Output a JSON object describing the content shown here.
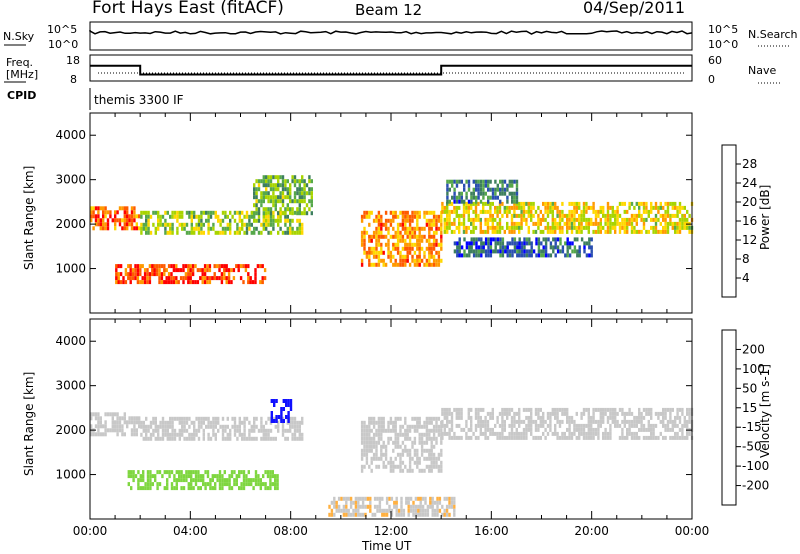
{
  "header": {
    "station": "Fort Hays East (fitACF)",
    "beam": "Beam 12",
    "date": "04/Sep/2011"
  },
  "status_panels": {
    "nsky_label": "N.Sky",
    "nsky_ticks": [
      "10^5",
      "10^0"
    ],
    "nsearch_label": "N.Search",
    "nsearch_ticks": [
      "10^5",
      "10^0"
    ],
    "freq_label_line1": "Freq.",
    "freq_label_line2": "[MHz]",
    "freq_ticks": [
      "18",
      "8"
    ],
    "nave_label": "Nave",
    "nave_ticks": [
      "60",
      "0"
    ],
    "cpid_label": "CPID",
    "cpid_value": "themis 3300 IF",
    "freq_steps_hours": [
      0,
      2,
      14,
      24
    ],
    "freq_values_mhz": [
      14.5,
      10.5,
      14.5
    ]
  },
  "colors": {
    "power_scale": [
      "#0000ff",
      "#2a4fb0",
      "#3e7f5e",
      "#56a84a",
      "#a8d400",
      "#ffd800",
      "#ff9a00",
      "#ff5a00",
      "#ff0000"
    ],
    "velocity_scale": [
      "#ff0000",
      "#ff4a00",
      "#ff8a00",
      "#ffb040",
      "#c8c8c8",
      "#c8c8c8",
      "#7fd640",
      "#3aa83a",
      "#2a6e6e",
      "#1e3ab0",
      "#1010ff"
    ],
    "ground": "#c8c8c8"
  },
  "chart_data": [
    {
      "type": "heatmap",
      "title": "Power",
      "xlabel": "",
      "ylabel": "Slant Range [km]",
      "xlim": [
        "00:00",
        "24:00"
      ],
      "ylim": [
        0,
        4500
      ],
      "y_ticks": [
        "1000",
        "2000",
        "3000",
        "4000"
      ],
      "colorbar_label": "Power [dB]",
      "colorbar_ticks": [
        "4",
        "8",
        "12",
        "16",
        "20",
        "24",
        "28"
      ],
      "colorbar_range": [
        0,
        30
      ],
      "regions": [
        {
          "t_start": 0.0,
          "t_end": 2.0,
          "r_low": 1900,
          "r_high": 2400,
          "level": 24
        },
        {
          "t_start": 2.0,
          "t_end": 8.5,
          "r_low": 1800,
          "r_high": 2300,
          "level": 14
        },
        {
          "t_start": 1.0,
          "t_end": 7.0,
          "r_low": 650,
          "r_high": 1100,
          "level": 26
        },
        {
          "t_start": 6.5,
          "t_end": 8.8,
          "r_low": 2200,
          "r_high": 3100,
          "level": 12
        },
        {
          "t_start": 10.8,
          "t_end": 14.0,
          "r_low": 1100,
          "r_high": 2300,
          "level": 22
        },
        {
          "t_start": 14.0,
          "t_end": 24.0,
          "r_low": 1800,
          "r_high": 2500,
          "level": 18
        },
        {
          "t_start": 14.5,
          "t_end": 20.0,
          "r_low": 1300,
          "r_high": 1700,
          "level": 6
        },
        {
          "t_start": 14.2,
          "t_end": 17.0,
          "r_low": 2500,
          "r_high": 3000,
          "level": 8
        }
      ]
    },
    {
      "type": "heatmap",
      "title": "Velocity",
      "xlabel": "Time UT",
      "ylabel": "Slant Range [km]",
      "x_ticks": [
        "00:00",
        "04:00",
        "08:00",
        "12:00",
        "16:00",
        "20:00",
        "00:00"
      ],
      "xlim": [
        "00:00",
        "24:00"
      ],
      "ylim": [
        0,
        4500
      ],
      "y_ticks": [
        "1000",
        "2000",
        "3000",
        "4000"
      ],
      "colorbar_label": "Velocity [m s-1]",
      "colorbar_ticks": [
        "-200",
        "-100",
        "-50",
        "-15",
        "15",
        "50",
        "100",
        "200"
      ],
      "colorbar_range": [
        -250,
        250
      ],
      "regions": [
        {
          "t_start": 0.0,
          "t_end": 2.0,
          "r_low": 1900,
          "r_high": 2400,
          "level": 0
        },
        {
          "t_start": 2.0,
          "t_end": 8.5,
          "r_low": 1800,
          "r_high": 2300,
          "level": 0
        },
        {
          "t_start": 1.5,
          "t_end": 7.5,
          "r_low": 650,
          "r_high": 1100,
          "level": 40
        },
        {
          "t_start": 7.2,
          "t_end": 8.0,
          "r_low": 2200,
          "r_high": 2700,
          "level": 220
        },
        {
          "t_start": 10.8,
          "t_end": 14.0,
          "r_low": 1100,
          "r_high": 2300,
          "level": 0
        },
        {
          "t_start": 9.5,
          "t_end": 14.5,
          "r_low": 100,
          "r_high": 500,
          "level": -60
        },
        {
          "t_start": 14.0,
          "t_end": 24.0,
          "r_low": 1800,
          "r_high": 2500,
          "level": 0
        }
      ]
    }
  ]
}
